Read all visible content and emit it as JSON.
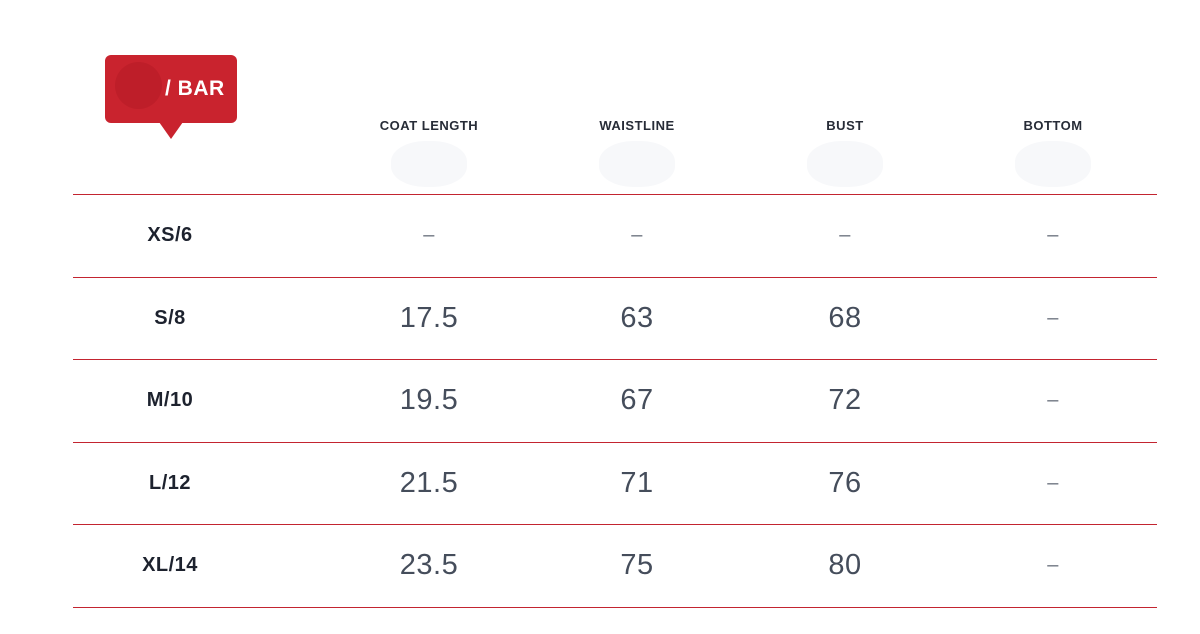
{
  "badge": {
    "brand_label": "/ BAR"
  },
  "table": {
    "columns": [
      "COAT LENGTH",
      "WAISTLINE",
      "BUST",
      "BOTTOM"
    ],
    "rows": [
      {
        "size": "XS/6",
        "cells": [
          "–",
          "–",
          "–",
          "–"
        ]
      },
      {
        "size": "S/8",
        "cells": [
          "17.5",
          "63",
          "68",
          "–"
        ]
      },
      {
        "size": "M/10",
        "cells": [
          "19.5",
          "67",
          "72",
          "–"
        ]
      },
      {
        "size": "L/12",
        "cells": [
          "21.5",
          "71",
          "76",
          "–"
        ]
      },
      {
        "size": "XL/14",
        "cells": [
          "23.5",
          "75",
          "80",
          "–"
        ]
      }
    ]
  },
  "colors": {
    "accent_red": "#C9232E",
    "badge_circle": "#BE1E29",
    "line": "#C32430",
    "header_text": "#272C37",
    "size_text": "#1D222E",
    "value_text": "#454D5B",
    "dash_text": "#6E7480",
    "blob": "#F7F8FA"
  }
}
